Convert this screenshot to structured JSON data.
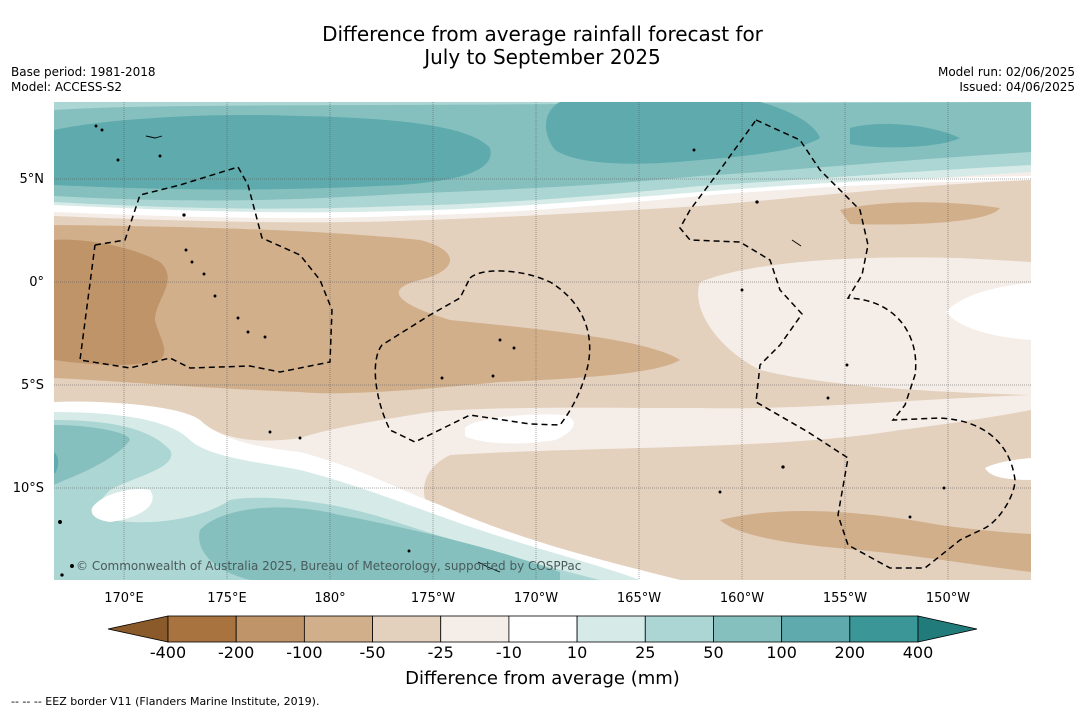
{
  "title": {
    "line1": "Difference from average rainfall forecast for",
    "line2": "July to September 2025"
  },
  "meta": {
    "base_period": "Base period: 1981-2018",
    "model": "Model: ACCESS-S2",
    "model_run": "Model run: 02/06/2025",
    "issued": "Issued: 04/06/2025"
  },
  "map": {
    "lat_labels": [
      "5°N",
      "0°",
      "5°S",
      "10°S"
    ],
    "lon_labels": [
      "170°E",
      "175°E",
      "180°",
      "175°W",
      "170°W",
      "165°W",
      "160°W",
      "155°W",
      "150°W"
    ],
    "copyright": "© Commonwealth of Australia 2025, Bureau of Meteorology, supported by COSPPac"
  },
  "colorbar": {
    "levels": [
      "-400",
      "-200",
      "-100",
      "-50",
      "-25",
      "-10",
      "10",
      "25",
      "50",
      "100",
      "200",
      "400"
    ],
    "colors": [
      "#8b5a2b",
      "#a8733f",
      "#bf9469",
      "#d2af8b",
      "#e3d0bd",
      "#f5ede7",
      "#ffffff",
      "#d6ebe8",
      "#acd6d3",
      "#85c0bf",
      "#5eaaac",
      "#3b9797",
      "#227b7b"
    ],
    "title": "Difference from average (mm)"
  },
  "footnote": "--  --  -- EEZ border V11 (Flanders Marine Institute, 2019)."
}
